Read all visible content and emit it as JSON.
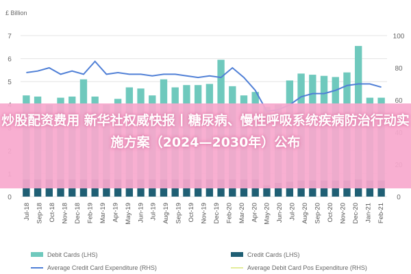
{
  "chart_data": {
    "type": "bar",
    "left_axis_unit": "£ Billion",
    "yleft": {
      "min": 0,
      "max": 7,
      "ticks": [
        "0",
        "1",
        "2",
        "3",
        "4",
        "5",
        "6",
        "7"
      ]
    },
    "yright": {
      "min": 0,
      "max": 100,
      "ticks": [
        "0",
        "20",
        "40",
        "60",
        "80",
        "100"
      ]
    },
    "categories": [
      "Jul-18",
      "Aug-18",
      "Sep-18",
      "Oct-18",
      "Nov-18",
      "Dec-18",
      "Jan-19",
      "Feb-19",
      "Mar-19",
      "Apr-19",
      "May-19",
      "Jun-19",
      "Jul-19",
      "Aug-19",
      "Sep-19",
      "Oct-19",
      "Nov-19",
      "Dec-19",
      "Jan-20",
      "Feb-20",
      "Mar-20",
      "Apr-20",
      "May-20",
      "Jun-20",
      "Jul-20",
      "Aug-20",
      "Sep-20",
      "Oct-20",
      "Nov-20",
      "Dec-20",
      "Jan-21",
      "Feb-21"
    ],
    "x_tick_labels": [
      "Jul-18",
      "Sep-18",
      "Oct-18",
      "Nov-18",
      "Dec-18",
      "Feb-19",
      "Mar-19",
      "Apr-19",
      "May-19",
      "Jun-19",
      "Jul-19",
      "Aug-19",
      "Sep-19",
      "Oct-19",
      "Nov-19",
      "Dec-19",
      "Feb-20",
      "Mar-20",
      "Apr-20",
      "May-20",
      "Jun-20",
      "Jul-20",
      "Aug-20",
      "Sep-20",
      "Oct-20",
      "Nov-20",
      "Dec-20",
      "Jan-21",
      "Feb-21"
    ],
    "series": [
      {
        "name": "Credit Cards (LHS)",
        "type": "bar",
        "axis": "left",
        "color": "#1f5f74",
        "values": [
          0.75,
          0.75,
          0.75,
          0.75,
          0.75,
          0.75,
          0.75,
          0.75,
          0.75,
          0.75,
          0.75,
          0.75,
          0.75,
          0.75,
          0.75,
          0.75,
          0.75,
          0.75,
          0.75,
          0.75,
          0.75,
          0.5,
          0.6,
          0.65,
          0.7,
          0.7,
          0.7,
          0.7,
          0.7,
          0.75,
          0.7,
          0.7
        ]
      },
      {
        "name": "Debit Cards (LHS)",
        "type": "bar",
        "axis": "left",
        "color": "#6fc9bd",
        "values": [
          3.65,
          3.6,
          3.25,
          3.55,
          3.6,
          4.35,
          3.6,
          3.25,
          3.5,
          4.0,
          3.95,
          3.65,
          4.35,
          4.0,
          4.1,
          4.1,
          4.15,
          5.2,
          4.05,
          3.65,
          3.8,
          3.4,
          3.4,
          4.4,
          4.65,
          4.6,
          4.55,
          4.5,
          4.7,
          5.8,
          3.6,
          3.6
        ]
      },
      {
        "name": "Average Credit Card Expenditure (RHS)",
        "type": "line",
        "axis": "right",
        "color": "#4f7fd6",
        "values": [
          77,
          78,
          80,
          76,
          78,
          76,
          84,
          76,
          77,
          76,
          76,
          75,
          76,
          76,
          75,
          74,
          75,
          74,
          80,
          74,
          66,
          53,
          54,
          57,
          62,
          64,
          64,
          66,
          69,
          70,
          70,
          68
        ]
      },
      {
        "name": "Average Debit Card Pos Expenditure (RHS)",
        "type": "line",
        "axis": "right",
        "color": "#e3ec9a",
        "values": [
          null,
          null,
          null,
          null,
          null,
          null,
          null,
          null,
          null,
          null,
          null,
          null,
          null,
          null,
          null,
          null,
          null,
          null,
          null,
          null,
          null,
          null,
          null,
          null,
          null,
          null,
          null,
          null,
          null,
          null,
          null,
          null
        ]
      }
    ],
    "legend_position": "bottom",
    "grid": true
  },
  "overlay_text": "炒股配资费用 新华社权威快报丨糖尿病、慢性呼吸系统疾病防治行动实施方案（2024—2030年）公布"
}
